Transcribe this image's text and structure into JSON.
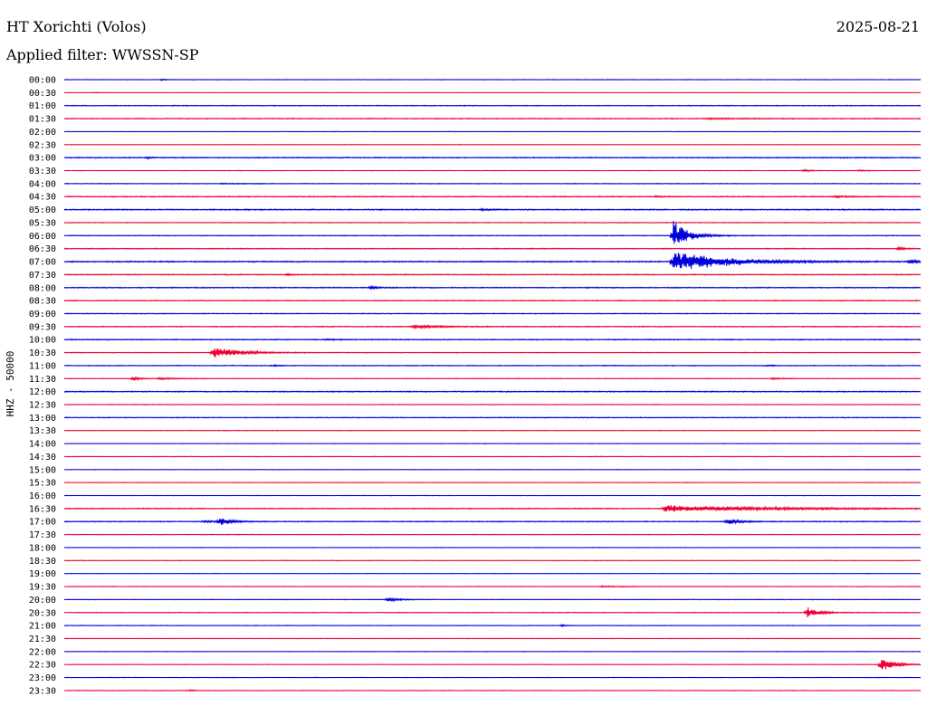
{
  "header": {
    "station": "HT Xorichti (Volos)",
    "date": "2025-08-21",
    "filter": "Applied filter: WWSSN-SP"
  },
  "chart_data": {
    "type": "line",
    "ylabel": "HHZ - 50000",
    "colors": [
      "#0000dd",
      "#ee0033"
    ],
    "row_labels": [
      "00:00",
      "00:30",
      "01:00",
      "01:30",
      "02:00",
      "02:30",
      "03:00",
      "03:30",
      "04:00",
      "04:30",
      "05:00",
      "05:30",
      "06:00",
      "06:30",
      "07:00",
      "07:30",
      "08:00",
      "08:30",
      "09:00",
      "09:30",
      "10:00",
      "10:30",
      "11:00",
      "11:30",
      "12:00",
      "12:30",
      "13:00",
      "13:30",
      "14:00",
      "14:30",
      "15:00",
      "15:30",
      "16:00",
      "16:30",
      "17:00",
      "17:30",
      "18:00",
      "18:30",
      "19:00",
      "19:30",
      "20:00",
      "20:30",
      "21:00",
      "21:30",
      "22:00",
      "22:30",
      "23:00",
      "23:30"
    ],
    "x_minutes": 30,
    "noise": [
      0.6,
      0.4,
      0.8,
      0.9,
      0.5,
      0.5,
      1.0,
      0.6,
      0.7,
      1.0,
      1.1,
      0.7,
      0.8,
      0.9,
      1.2,
      0.9,
      1.0,
      0.9,
      0.8,
      0.9,
      1.0,
      0.7,
      0.8,
      0.7,
      1.0,
      0.6,
      0.8,
      0.6,
      0.5,
      0.6,
      0.5,
      0.5,
      0.5,
      1.0,
      0.9,
      0.6,
      0.5,
      0.6,
      0.5,
      0.6,
      0.6,
      0.7,
      0.6,
      0.5,
      0.5,
      0.5,
      0.5,
      0.6
    ],
    "events": [
      {
        "row": 0,
        "t": 3.4,
        "amp": 1.5,
        "dur": 0.6
      },
      {
        "row": 1,
        "t": 1.1,
        "amp": 1.5,
        "dur": 0.2
      },
      {
        "row": 3,
        "t": 22.5,
        "amp": 1.5,
        "dur": 3.0
      },
      {
        "row": 6,
        "t": 2.9,
        "amp": 3.5,
        "dur": 0.3
      },
      {
        "row": 7,
        "t": 25.9,
        "amp": 3,
        "dur": 0.5
      },
      {
        "row": 7,
        "t": 27.8,
        "amp": 2.5,
        "dur": 0.5
      },
      {
        "row": 8,
        "t": 5.5,
        "amp": 1.5,
        "dur": 1.5
      },
      {
        "row": 9,
        "t": 20.7,
        "amp": 2,
        "dur": 0.5
      },
      {
        "row": 9,
        "t": 27.0,
        "amp": 2.5,
        "dur": 1.0
      },
      {
        "row": 10,
        "t": 14.6,
        "amp": 2,
        "dur": 0.8
      },
      {
        "row": 12,
        "t": 21.3,
        "amp": 45,
        "dur": 1.1
      },
      {
        "row": 13,
        "t": 29.2,
        "amp": 6,
        "dur": 0.4
      },
      {
        "row": 14,
        "t": 21.3,
        "amp": 35,
        "dur": 3.5
      },
      {
        "row": 14,
        "t": 29.6,
        "amp": 7,
        "dur": 0.6
      },
      {
        "row": 15,
        "t": 7.8,
        "amp": 2.5,
        "dur": 0.4
      },
      {
        "row": 16,
        "t": 10.7,
        "amp": 4,
        "dur": 0.6
      },
      {
        "row": 19,
        "t": 12.2,
        "amp": 5,
        "dur": 2.0
      },
      {
        "row": 20,
        "t": 9.2,
        "amp": 1.5,
        "dur": 0.8
      },
      {
        "row": 21,
        "t": 5.2,
        "amp": 16,
        "dur": 2.0
      },
      {
        "row": 22,
        "t": 7.3,
        "amp": 2,
        "dur": 0.5
      },
      {
        "row": 22,
        "t": 24.6,
        "amp": 2,
        "dur": 0.5
      },
      {
        "row": 23,
        "t": 2.4,
        "amp": 8,
        "dur": 0.4
      },
      {
        "row": 23,
        "t": 3.3,
        "amp": 3,
        "dur": 1.2
      },
      {
        "row": 23,
        "t": 24.8,
        "amp": 2.5,
        "dur": 0.6
      },
      {
        "row": 33,
        "t": 21.0,
        "amp": 10,
        "dur": 7.0
      },
      {
        "row": 34,
        "t": 4.9,
        "amp": 3,
        "dur": 1.0
      },
      {
        "row": 34,
        "t": 5.4,
        "amp": 14,
        "dur": 0.8
      },
      {
        "row": 34,
        "t": 23.2,
        "amp": 9,
        "dur": 1.0
      },
      {
        "row": 39,
        "t": 18.8,
        "amp": 1.5,
        "dur": 2.0
      },
      {
        "row": 40,
        "t": 11.3,
        "amp": 6,
        "dur": 0.9
      },
      {
        "row": 41,
        "t": 26.0,
        "amp": 16,
        "dur": 0.9
      },
      {
        "row": 42,
        "t": 17.4,
        "amp": 2.5,
        "dur": 0.4
      },
      {
        "row": 45,
        "t": 28.6,
        "amp": 26,
        "dur": 0.9
      },
      {
        "row": 47,
        "t": 4.4,
        "amp": 2.5,
        "dur": 0.4
      }
    ]
  }
}
